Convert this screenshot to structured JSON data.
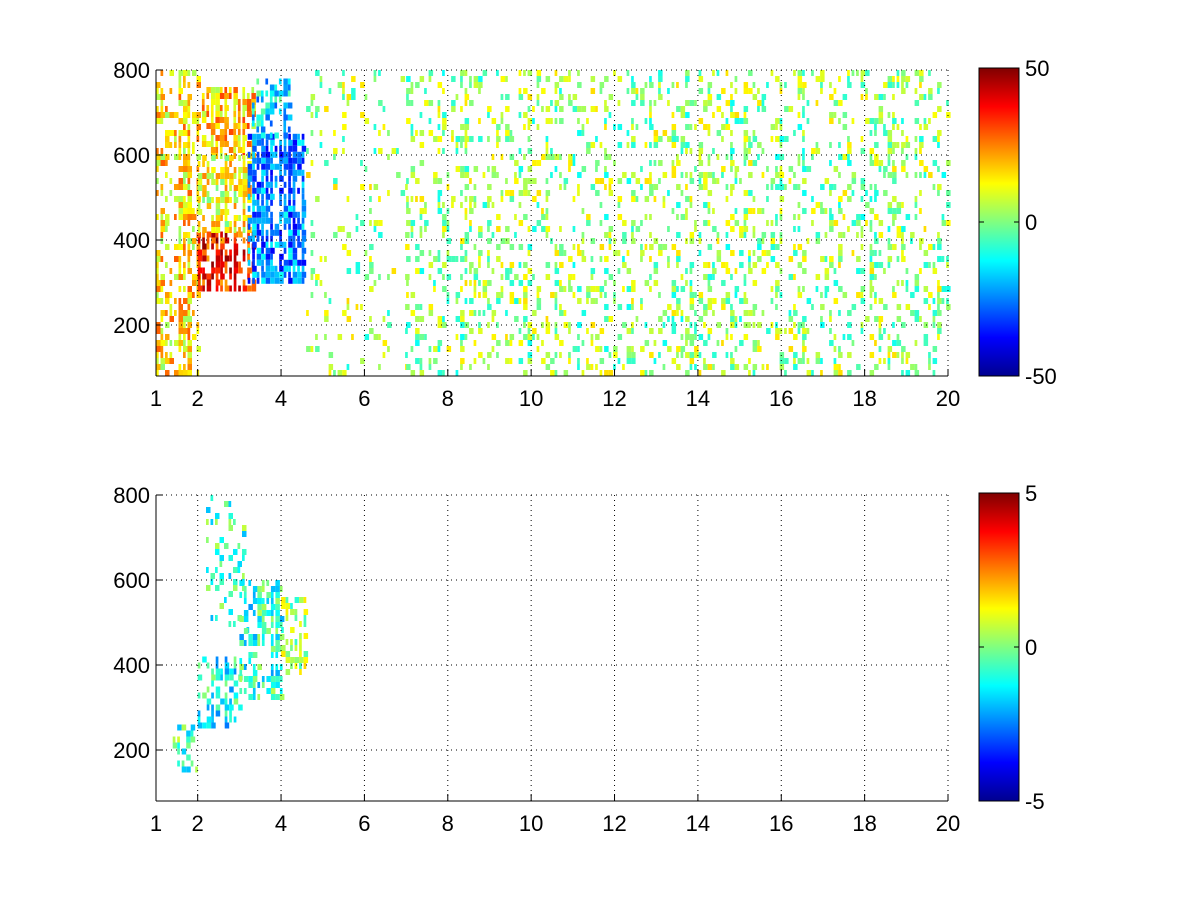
{
  "figure": {
    "background": "#ffffff",
    "colormap": [
      "#00008f",
      "#0000ff",
      "#0080ff",
      "#00ffff",
      "#80ff80",
      "#ffff00",
      "#ff8000",
      "#ff0000",
      "#800000"
    ]
  },
  "chart_data": [
    {
      "type": "heatmap",
      "title": "",
      "xlabel": "",
      "ylabel": "",
      "xlim": [
        1,
        20
      ],
      "ylim": [
        80,
        800
      ],
      "xticks": [
        1,
        2,
        4,
        6,
        8,
        10,
        12,
        14,
        16,
        18,
        20
      ],
      "xtick_labels": [
        "1",
        "2",
        "4",
        "6",
        "8",
        "10",
        "12",
        "14",
        "16",
        "18",
        "20"
      ],
      "yticks": [
        200,
        400,
        600,
        800
      ],
      "ytick_labels": [
        "200",
        "400",
        "600",
        "800"
      ],
      "grid": true,
      "colorbar": {
        "range": [
          -50,
          50
        ],
        "ticks": [
          50,
          0,
          -50
        ],
        "tick_labels": [
          "50",
          "0",
          "-50"
        ]
      },
      "regions": [
        {
          "x": [
            1.0,
            2.0
          ],
          "y": [
            80,
            800
          ],
          "value": 15,
          "density": 0.55
        },
        {
          "x": [
            2.0,
            3.3
          ],
          "y": [
            280,
            420
          ],
          "value": 35,
          "density": 0.8
        },
        {
          "x": [
            2.1,
            3.3
          ],
          "y": [
            600,
            760
          ],
          "value": 18,
          "density": 0.75
        },
        {
          "x": [
            2.0,
            3.2
          ],
          "y": [
            420,
            600
          ],
          "value": 12,
          "density": 0.65
        },
        {
          "x": [
            3.2,
            4.6
          ],
          "y": [
            300,
            650
          ],
          "value": -25,
          "density": 0.85
        },
        {
          "x": [
            3.3,
            4.2
          ],
          "y": [
            650,
            780
          ],
          "value": -15,
          "density": 0.6
        },
        {
          "x": [
            4.6,
            7.0
          ],
          "y": [
            80,
            800
          ],
          "value": 3,
          "density": 0.14
        },
        {
          "x": [
            7.0,
            20.0
          ],
          "y": [
            80,
            800
          ],
          "value": 2,
          "density": 0.3
        }
      ]
    },
    {
      "type": "heatmap",
      "title": "",
      "xlabel": "",
      "ylabel": "",
      "xlim": [
        1,
        20
      ],
      "ylim": [
        80,
        800
      ],
      "xticks": [
        1,
        2,
        4,
        6,
        8,
        10,
        12,
        14,
        16,
        18,
        20
      ],
      "xtick_labels": [
        "1",
        "2",
        "4",
        "6",
        "8",
        "10",
        "12",
        "14",
        "16",
        "18",
        "20"
      ],
      "yticks": [
        200,
        400,
        600,
        800
      ],
      "ytick_labels": [
        "200",
        "400",
        "600",
        "800"
      ],
      "grid": true,
      "colorbar": {
        "range": [
          -5,
          5
        ],
        "ticks": [
          5,
          0,
          -5
        ],
        "tick_labels": [
          "5",
          "0",
          "-5"
        ]
      },
      "regions": [
        {
          "x": [
            1.4,
            2.0
          ],
          "y": [
            150,
            260
          ],
          "value": -0.5,
          "density": 0.4
        },
        {
          "x": [
            2.0,
            3.0
          ],
          "y": [
            260,
            420
          ],
          "value": -1.2,
          "density": 0.55
        },
        {
          "x": [
            2.2,
            3.2
          ],
          "y": [
            480,
            800
          ],
          "value": -0.6,
          "density": 0.22
        },
        {
          "x": [
            3.0,
            4.0
          ],
          "y": [
            330,
            600
          ],
          "value": -0.9,
          "density": 0.6
        },
        {
          "x": [
            4.0,
            4.6
          ],
          "y": [
            380,
            560
          ],
          "value": 0.3,
          "density": 0.45
        }
      ]
    }
  ]
}
